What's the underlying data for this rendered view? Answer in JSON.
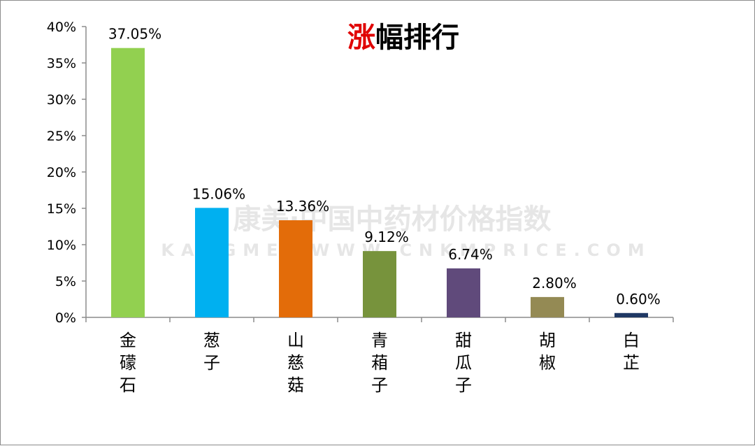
{
  "chart_data": {
    "type": "bar",
    "title_accent": "涨",
    "title_rest": "幅排行",
    "categories": [
      "金礞石",
      "葱子",
      "山慈菇",
      "青葙子",
      "甜瓜子",
      "胡椒",
      "白芷"
    ],
    "values": [
      37.05,
      15.06,
      13.36,
      9.12,
      6.74,
      2.8,
      0.6
    ],
    "value_labels": [
      "37.05%",
      "15.06%",
      "13.36%",
      "9.12%",
      "6.74%",
      "2.80%",
      "0.60%"
    ],
    "bar_colors": [
      "#92d050",
      "#00b0f0",
      "#e36c09",
      "#77933c",
      "#604a7b",
      "#948a54",
      "#1f3864"
    ],
    "ylim": [
      0,
      40
    ],
    "yticks": [
      0,
      5,
      10,
      15,
      20,
      25,
      30,
      35,
      40
    ],
    "ytick_labels": [
      "0%",
      "5%",
      "10%",
      "15%",
      "20%",
      "25%",
      "30%",
      "35%",
      "40%"
    ],
    "title_accent_color": "#e00000",
    "xlabel": "",
    "ylabel": "",
    "grid": false,
    "legend": false
  },
  "watermark": {
    "line1": "康美·中国中药材价格指数",
    "line2": "KANGMEI WWW.CNKMPRICE.COM"
  }
}
